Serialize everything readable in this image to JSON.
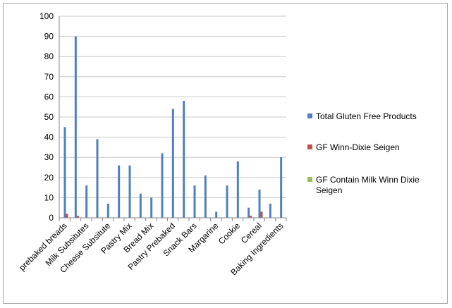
{
  "chart_data": {
    "type": "bar",
    "title": "",
    "xlabel": "",
    "ylabel": "",
    "ylim": [
      0,
      100
    ],
    "yticks": [
      "0",
      "10",
      "20",
      "30",
      "40",
      "50",
      "60",
      "70",
      "80",
      "90",
      "100"
    ],
    "grid": true,
    "legend_position": "right",
    "categories": [
      "prebaked breads",
      "",
      "Milk Subsitutes",
      "",
      "Cheese Subsitute",
      "",
      "Pastry Mix",
      "",
      "Bread Mix",
      "",
      "Pastry Prebaked",
      "",
      "Snack Bars",
      "",
      "Margarine",
      "",
      "Cookie",
      "",
      "Cereal",
      "",
      "Baking Ingredients"
    ],
    "series": [
      {
        "name": "Total Gluten Free Products",
        "color": "#4f81bd",
        "values": [
          45,
          90,
          16,
          39,
          7,
          26,
          26,
          12,
          10,
          32,
          54,
          58,
          16,
          21,
          3,
          16,
          28,
          5,
          14,
          7,
          30
        ]
      },
      {
        "name": "GF Winn-Dixie Seigen",
        "color": "#c0504d",
        "values": [
          2,
          1,
          0,
          0,
          0,
          0,
          0,
          0,
          0,
          0,
          0,
          0,
          0,
          0,
          0,
          0,
          0,
          1,
          3,
          0,
          0
        ]
      },
      {
        "name": "GF Contain Milk Winn Dixie Seigen",
        "color": "#9bbb59",
        "values": [
          0,
          0,
          0,
          0,
          0,
          0,
          0,
          0,
          0,
          0,
          0,
          0,
          0,
          0,
          0,
          0,
          0,
          0,
          0,
          0,
          0
        ]
      }
    ]
  }
}
